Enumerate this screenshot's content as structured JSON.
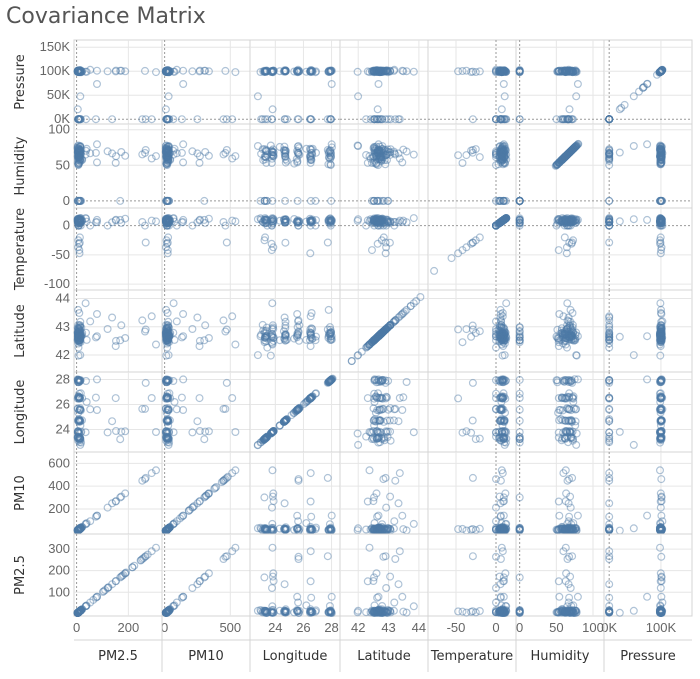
{
  "title": "Covariance Matrix",
  "colors": {
    "point": "#4e79a7",
    "grid": "#e6e6e6",
    "border": "#d4d4d4",
    "zero": "#999999"
  },
  "chart_data": {
    "type": "scatter",
    "title": "Covariance Matrix",
    "matrix": "scatterplot-matrix",
    "variables": [
      "PM2.5",
      "PM10",
      "Longitude",
      "Latitude",
      "Temperature",
      "Humidity",
      "Pressure"
    ],
    "row_order": [
      "Pressure",
      "Humidity",
      "Temperature",
      "Latitude",
      "Longitude",
      "PM10",
      "PM2.5"
    ],
    "col_order": [
      "PM2.5",
      "PM10",
      "Longitude",
      "Latitude",
      "Temperature",
      "Humidity",
      "Pressure"
    ],
    "axes": {
      "PM2.5": {
        "range": [
          -10,
          330
        ],
        "ticks": [
          0,
          200
        ],
        "row_ticks": [
          100,
          200,
          300
        ],
        "row_range": [
          -10,
          370
        ]
      },
      "PM10": {
        "range": [
          -20,
          650
        ],
        "ticks": [
          0,
          500
        ],
        "row_ticks": [
          200,
          400,
          600
        ],
        "row_range": [
          -20,
          700
        ]
      },
      "Longitude": {
        "range": [
          22.2,
          28.6
        ],
        "ticks": [
          24,
          26,
          28
        ],
        "tick_labels": [
          "24",
          "26",
          "28"
        ]
      },
      "Latitude": {
        "range": [
          41.4,
          44.3
        ],
        "ticks": [
          42,
          43,
          44
        ]
      },
      "Temperature": {
        "range": [
          -85,
          25
        ],
        "ticks": [
          -50,
          0
        ],
        "row_ticks": [
          0,
          -50,
          -100
        ],
        "row_range": [
          -110,
          30
        ]
      },
      "Humidity": {
        "range": [
          -5,
          115
        ],
        "ticks": [
          0,
          50,
          100
        ],
        "row_ticks": [
          0,
          50,
          100
        ],
        "row_range": [
          -10,
          108
        ]
      },
      "Pressure": {
        "range": [
          -10000,
          160000
        ],
        "ticks": [
          0,
          100000
        ],
        "tick_labels": [
          "0K",
          "100K"
        ],
        "row_ticks": [
          0,
          50000,
          100000,
          150000
        ],
        "row_tick_labels": [
          "0K",
          "50K",
          "100K",
          "150K"
        ],
        "row_range": [
          -10000,
          165000
        ]
      }
    },
    "grid": true,
    "marker": "open-circle"
  }
}
